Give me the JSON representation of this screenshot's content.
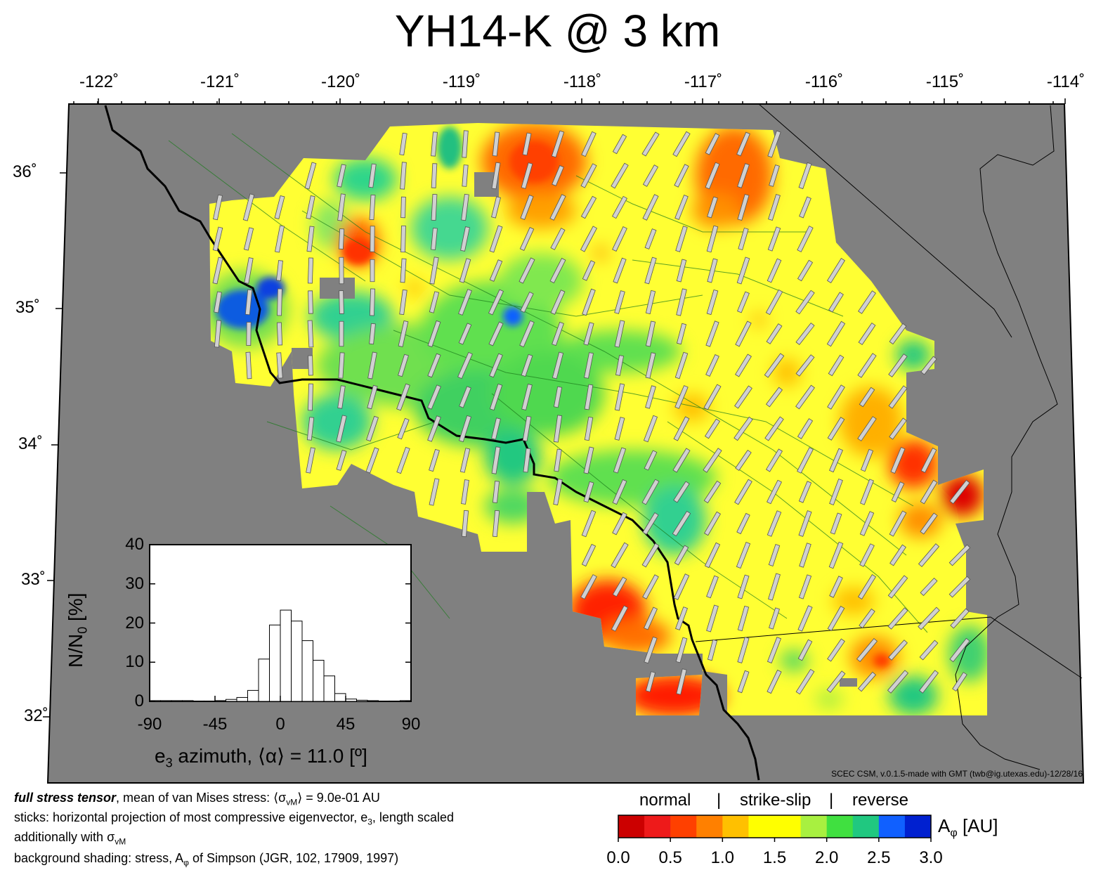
{
  "title": "YH14-K @ 3 km",
  "lon_ticks": [
    "-122˚",
    "-121˚",
    "-120˚",
    "-119˚",
    "-118˚",
    "-117˚",
    "-116˚",
    "-115˚",
    "-114˚"
  ],
  "lat_ticks": [
    "36˚",
    "35˚",
    "34˚",
    "33˚",
    "32˚"
  ],
  "inset": {
    "ylabel": "N/N0 [%]",
    "ylabel_main": "N/N",
    "ylabel_sub": "0",
    "ylabel_tail": " [%]",
    "xlabel_pre": "e",
    "xlabel_sub": "3",
    "xlabel_post": " azimuth, ⟨α⟩ = 11.0 [º]",
    "yticks": [
      "0",
      "10",
      "20",
      "30",
      "40"
    ],
    "xticks": [
      "-90",
      "-45",
      "0",
      "45",
      "90"
    ]
  },
  "chart_data": {
    "type": "bar",
    "title": "",
    "xlabel": "e3 azimuth, ⟨α⟩ = 11.0 [º]",
    "ylabel": "N/N0 [%]",
    "xlim": [
      -90,
      90
    ],
    "ylim": [
      0,
      40
    ],
    "bin_width": 7.5,
    "bin_centers": [
      -86.25,
      -78.75,
      -71.25,
      -63.75,
      -56.25,
      -48.75,
      -41.25,
      -33.75,
      -26.25,
      -18.75,
      -11.25,
      -3.75,
      3.75,
      11.25,
      18.75,
      26.25,
      33.75,
      41.25,
      48.75,
      56.25,
      63.75,
      71.25,
      78.75,
      86.25
    ],
    "values": [
      0.2,
      0.2,
      0.2,
      0.2,
      0.1,
      0.1,
      0.2,
      0.5,
      1.0,
      2.8,
      10.8,
      19.5,
      23.3,
      20.5,
      15.5,
      10.5,
      6.5,
      2.0,
      0.6,
      0.3,
      0.2,
      0.1,
      0.1,
      0.2
    ]
  },
  "colorbar": {
    "labels": [
      "normal",
      "|",
      "strike-slip",
      "|",
      "reverse"
    ],
    "units": "Aφ [AU]",
    "units_main": "A",
    "units_sub": "φ",
    "units_tail": " [AU]",
    "ticks": [
      "0.0",
      "0.5",
      "1.0",
      "1.5",
      "2.0",
      "2.5",
      "3.0"
    ],
    "colors": [
      "#cc0000",
      "#ee1a1a",
      "#ff4000",
      "#ff8000",
      "#ffc000",
      "#ffff00",
      "#ffff00",
      "#a8f040",
      "#40e040",
      "#20c880",
      "#1060ff",
      "#0020d0"
    ]
  },
  "footer": {
    "line1_bold": "full stress tensor",
    "line1_pre": ", mean of van Mises stress: ⟨σ",
    "line1_sub": "vM",
    "line1_post": "⟩ = 9.0e-01 AU",
    "line2": "sticks: horizontal projection of most compressive eigenvector, e",
    "line2_sub": "3",
    "line2_post": ", length scaled",
    "line3_pre": "additionally with σ",
    "line3_sub": "vM",
    "line4_pre": "background shading: stress, A",
    "line4_sub": "φ",
    "line4_post": " of Simpson (JGR, 102, 17909, 1997)"
  },
  "credit": "SCEC CSM, v.0.1.5-made with GMT (twb@ig.utexas.edu)-12/28/16"
}
